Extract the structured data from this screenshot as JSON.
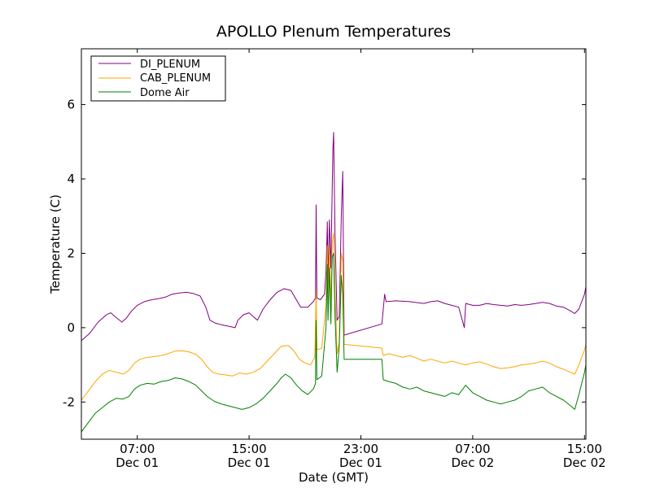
{
  "chart_data": {
    "type": "line",
    "title": "APOLLO Plenum Temperatures",
    "xlabel": "Date (GMT)",
    "ylabel": "Temperature (C)",
    "x_unit": "hours GMT from Dec 01 00:00",
    "xlim": [
      3.0,
      39.1
    ],
    "ylim": [
      -3,
      7.5
    ],
    "yticks": [
      6,
      4,
      2,
      0,
      -2
    ],
    "ytick_labels": [
      "6",
      "4",
      "2",
      "0",
      "-2"
    ],
    "xticks": [
      {
        "x": 7,
        "time": "07:00",
        "date": "Dec 01"
      },
      {
        "x": 15,
        "time": "15:00",
        "date": "Dec 01"
      },
      {
        "x": 23,
        "time": "23:00",
        "date": "Dec 01"
      },
      {
        "x": 31,
        "time": "07:00",
        "date": "Dec 02"
      },
      {
        "x": 39,
        "time": "15:00",
        "date": "Dec 02"
      }
    ],
    "grid": false,
    "legend_position": "top-left",
    "series": [
      {
        "name": "DI_PLENUM",
        "color": "#800080",
        "points": [
          [
            3.0,
            -0.35
          ],
          [
            3.6,
            -0.15
          ],
          [
            4.2,
            0.15
          ],
          [
            4.8,
            0.35
          ],
          [
            5.1,
            0.4
          ],
          [
            5.4,
            0.3
          ],
          [
            5.9,
            0.15
          ],
          [
            6.2,
            0.25
          ],
          [
            6.6,
            0.45
          ],
          [
            7.0,
            0.6
          ],
          [
            7.5,
            0.7
          ],
          [
            8.0,
            0.75
          ],
          [
            8.5,
            0.78
          ],
          [
            9.0,
            0.82
          ],
          [
            9.5,
            0.9
          ],
          [
            10.0,
            0.93
          ],
          [
            10.5,
            0.95
          ],
          [
            11.0,
            0.92
          ],
          [
            11.5,
            0.85
          ],
          [
            11.9,
            0.55
          ],
          [
            12.2,
            0.2
          ],
          [
            12.6,
            0.12
          ],
          [
            13.0,
            0.08
          ],
          [
            13.4,
            0.05
          ],
          [
            14.0,
            0.0
          ],
          [
            14.2,
            0.2
          ],
          [
            14.6,
            0.35
          ],
          [
            15.0,
            0.4
          ],
          [
            15.3,
            0.3
          ],
          [
            15.6,
            0.2
          ],
          [
            16.0,
            0.5
          ],
          [
            16.5,
            0.75
          ],
          [
            17.0,
            0.95
          ],
          [
            17.5,
            1.05
          ],
          [
            18.0,
            1.0
          ],
          [
            18.3,
            0.8
          ],
          [
            18.7,
            0.55
          ],
          [
            19.2,
            0.55
          ],
          [
            19.6,
            0.7
          ],
          [
            19.75,
            0.8
          ],
          [
            19.8,
            3.3
          ],
          [
            19.85,
            0.8
          ],
          [
            20.1,
            0.75
          ],
          [
            20.4,
            0.9
          ],
          [
            20.5,
            1.5
          ],
          [
            20.6,
            2.85
          ],
          [
            20.65,
            1.2
          ],
          [
            20.75,
            2.9
          ],
          [
            20.85,
            1.6
          ],
          [
            20.95,
            3.8
          ],
          [
            21.0,
            4.8
          ],
          [
            21.05,
            5.25
          ],
          [
            21.15,
            2.5
          ],
          [
            21.3,
            0.2
          ],
          [
            21.45,
            0.3
          ],
          [
            21.6,
            3.0
          ],
          [
            21.7,
            4.2
          ],
          [
            21.8,
            -0.2
          ],
          [
            24.5,
            0.1
          ],
          [
            24.6,
            0.5
          ],
          [
            24.7,
            0.9
          ],
          [
            24.8,
            0.7
          ],
          [
            25.5,
            0.72
          ],
          [
            26.5,
            0.7
          ],
          [
            27.5,
            0.65
          ],
          [
            28.0,
            0.7
          ],
          [
            28.5,
            0.72
          ],
          [
            29.0,
            0.65
          ],
          [
            29.5,
            0.6
          ],
          [
            30.0,
            0.55
          ],
          [
            30.4,
            0.0
          ],
          [
            30.5,
            0.65
          ],
          [
            31.0,
            0.6
          ],
          [
            31.5,
            0.6
          ],
          [
            32.0,
            0.65
          ],
          [
            32.5,
            0.62
          ],
          [
            33.0,
            0.6
          ],
          [
            33.5,
            0.58
          ],
          [
            34.0,
            0.62
          ],
          [
            34.5,
            0.6
          ],
          [
            35.0,
            0.62
          ],
          [
            35.5,
            0.65
          ],
          [
            36.0,
            0.68
          ],
          [
            36.5,
            0.65
          ],
          [
            37.0,
            0.58
          ],
          [
            37.5,
            0.55
          ],
          [
            38.0,
            0.45
          ],
          [
            38.3,
            0.38
          ],
          [
            38.6,
            0.5
          ],
          [
            39.0,
            0.9
          ],
          [
            39.1,
            1.1
          ]
        ]
      },
      {
        "name": "CAB_PLENUM",
        "color": "#ffa500",
        "points": [
          [
            3.0,
            -1.95
          ],
          [
            3.5,
            -1.7
          ],
          [
            4.0,
            -1.45
          ],
          [
            4.5,
            -1.25
          ],
          [
            5.0,
            -1.15
          ],
          [
            5.5,
            -1.2
          ],
          [
            6.0,
            -1.25
          ],
          [
            6.4,
            -1.15
          ],
          [
            6.8,
            -0.95
          ],
          [
            7.2,
            -0.85
          ],
          [
            7.7,
            -0.8
          ],
          [
            8.2,
            -0.78
          ],
          [
            8.7,
            -0.75
          ],
          [
            9.2,
            -0.7
          ],
          [
            9.7,
            -0.63
          ],
          [
            10.2,
            -0.62
          ],
          [
            10.7,
            -0.65
          ],
          [
            11.2,
            -0.72
          ],
          [
            11.6,
            -0.85
          ],
          [
            12.0,
            -1.05
          ],
          [
            12.4,
            -1.2
          ],
          [
            12.8,
            -1.25
          ],
          [
            13.3,
            -1.27
          ],
          [
            13.8,
            -1.3
          ],
          [
            14.3,
            -1.22
          ],
          [
            14.8,
            -1.25
          ],
          [
            15.3,
            -1.2
          ],
          [
            15.8,
            -1.1
          ],
          [
            16.3,
            -0.9
          ],
          [
            16.8,
            -0.7
          ],
          [
            17.3,
            -0.5
          ],
          [
            17.8,
            -0.48
          ],
          [
            18.2,
            -0.62
          ],
          [
            18.6,
            -0.85
          ],
          [
            19.0,
            -0.95
          ],
          [
            19.4,
            -1.0
          ],
          [
            19.7,
            -0.8
          ],
          [
            19.8,
            1.0
          ],
          [
            19.85,
            -0.6
          ],
          [
            20.2,
            -0.55
          ],
          [
            20.5,
            0.6
          ],
          [
            20.6,
            2.2
          ],
          [
            20.65,
            0.4
          ],
          [
            20.75,
            2.2
          ],
          [
            20.85,
            0.5
          ],
          [
            20.95,
            2.3
          ],
          [
            21.05,
            2.55
          ],
          [
            21.15,
            1.0
          ],
          [
            21.3,
            -0.7
          ],
          [
            21.45,
            -0.4
          ],
          [
            21.6,
            2.0
          ],
          [
            21.7,
            1.8
          ],
          [
            21.8,
            -0.45
          ],
          [
            24.5,
            -0.55
          ],
          [
            24.6,
            -0.75
          ],
          [
            25.0,
            -0.7
          ],
          [
            25.5,
            -0.75
          ],
          [
            26.0,
            -0.8
          ],
          [
            26.5,
            -0.75
          ],
          [
            27.0,
            -0.82
          ],
          [
            27.5,
            -0.9
          ],
          [
            28.0,
            -0.85
          ],
          [
            28.5,
            -0.9
          ],
          [
            29.0,
            -0.95
          ],
          [
            29.5,
            -0.9
          ],
          [
            30.0,
            -0.95
          ],
          [
            30.5,
            -1.0
          ],
          [
            31.0,
            -0.95
          ],
          [
            31.5,
            -0.92
          ],
          [
            32.0,
            -0.98
          ],
          [
            32.5,
            -1.05
          ],
          [
            33.0,
            -1.1
          ],
          [
            33.5,
            -1.08
          ],
          [
            34.0,
            -1.05
          ],
          [
            34.5,
            -1.0
          ],
          [
            35.0,
            -0.98
          ],
          [
            35.5,
            -0.95
          ],
          [
            36.0,
            -0.9
          ],
          [
            36.5,
            -0.95
          ],
          [
            37.0,
            -1.05
          ],
          [
            37.5,
            -1.12
          ],
          [
            38.0,
            -1.2
          ],
          [
            38.3,
            -1.25
          ],
          [
            38.6,
            -1.0
          ],
          [
            39.0,
            -0.6
          ],
          [
            39.1,
            -0.45
          ]
        ]
      },
      {
        "name": "Dome Air",
        "color": "#008000",
        "points": [
          [
            3.0,
            -2.8
          ],
          [
            3.5,
            -2.55
          ],
          [
            4.0,
            -2.3
          ],
          [
            4.5,
            -2.15
          ],
          [
            5.0,
            -2.0
          ],
          [
            5.5,
            -1.9
          ],
          [
            6.0,
            -1.92
          ],
          [
            6.4,
            -1.85
          ],
          [
            6.8,
            -1.65
          ],
          [
            7.2,
            -1.55
          ],
          [
            7.7,
            -1.5
          ],
          [
            8.2,
            -1.52
          ],
          [
            8.7,
            -1.45
          ],
          [
            9.2,
            -1.42
          ],
          [
            9.7,
            -1.35
          ],
          [
            10.2,
            -1.38
          ],
          [
            10.7,
            -1.45
          ],
          [
            11.2,
            -1.55
          ],
          [
            11.6,
            -1.7
          ],
          [
            12.0,
            -1.85
          ],
          [
            12.5,
            -1.98
          ],
          [
            13.0,
            -2.05
          ],
          [
            13.5,
            -2.1
          ],
          [
            14.0,
            -2.15
          ],
          [
            14.5,
            -2.2
          ],
          [
            15.0,
            -2.15
          ],
          [
            15.5,
            -2.05
          ],
          [
            16.0,
            -1.9
          ],
          [
            16.5,
            -1.7
          ],
          [
            17.0,
            -1.5
          ],
          [
            17.3,
            -1.35
          ],
          [
            17.6,
            -1.25
          ],
          [
            18.0,
            -1.35
          ],
          [
            18.4,
            -1.55
          ],
          [
            18.8,
            -1.7
          ],
          [
            19.2,
            -1.8
          ],
          [
            19.6,
            -1.65
          ],
          [
            19.75,
            -1.5
          ],
          [
            19.8,
            0.2
          ],
          [
            19.85,
            -1.4
          ],
          [
            20.2,
            -1.3
          ],
          [
            20.5,
            0.0
          ],
          [
            20.6,
            1.7
          ],
          [
            20.65,
            0.2
          ],
          [
            20.75,
            1.6
          ],
          [
            20.85,
            0.1
          ],
          [
            20.95,
            1.9
          ],
          [
            21.05,
            2.0
          ],
          [
            21.15,
            0.3
          ],
          [
            21.3,
            -1.2
          ],
          [
            21.45,
            -0.5
          ],
          [
            21.6,
            1.4
          ],
          [
            21.7,
            0.9
          ],
          [
            21.8,
            -0.85
          ],
          [
            24.5,
            -0.85
          ],
          [
            24.6,
            -1.4
          ],
          [
            25.0,
            -1.45
          ],
          [
            25.5,
            -1.5
          ],
          [
            26.0,
            -1.6
          ],
          [
            26.5,
            -1.65
          ],
          [
            27.0,
            -1.6
          ],
          [
            27.5,
            -1.7
          ],
          [
            28.0,
            -1.75
          ],
          [
            28.5,
            -1.8
          ],
          [
            29.0,
            -1.85
          ],
          [
            29.5,
            -1.75
          ],
          [
            30.0,
            -1.8
          ],
          [
            30.5,
            -1.55
          ],
          [
            31.0,
            -1.75
          ],
          [
            31.5,
            -1.85
          ],
          [
            32.0,
            -1.95
          ],
          [
            32.5,
            -2.0
          ],
          [
            33.0,
            -2.05
          ],
          [
            33.5,
            -2.0
          ],
          [
            34.0,
            -1.95
          ],
          [
            34.5,
            -1.85
          ],
          [
            35.0,
            -1.7
          ],
          [
            35.5,
            -1.65
          ],
          [
            36.0,
            -1.6
          ],
          [
            36.5,
            -1.75
          ],
          [
            37.0,
            -1.85
          ],
          [
            37.5,
            -1.95
          ],
          [
            38.0,
            -2.1
          ],
          [
            38.3,
            -2.2
          ],
          [
            38.6,
            -1.8
          ],
          [
            39.0,
            -1.2
          ],
          [
            39.1,
            -1.0
          ]
        ]
      }
    ]
  }
}
